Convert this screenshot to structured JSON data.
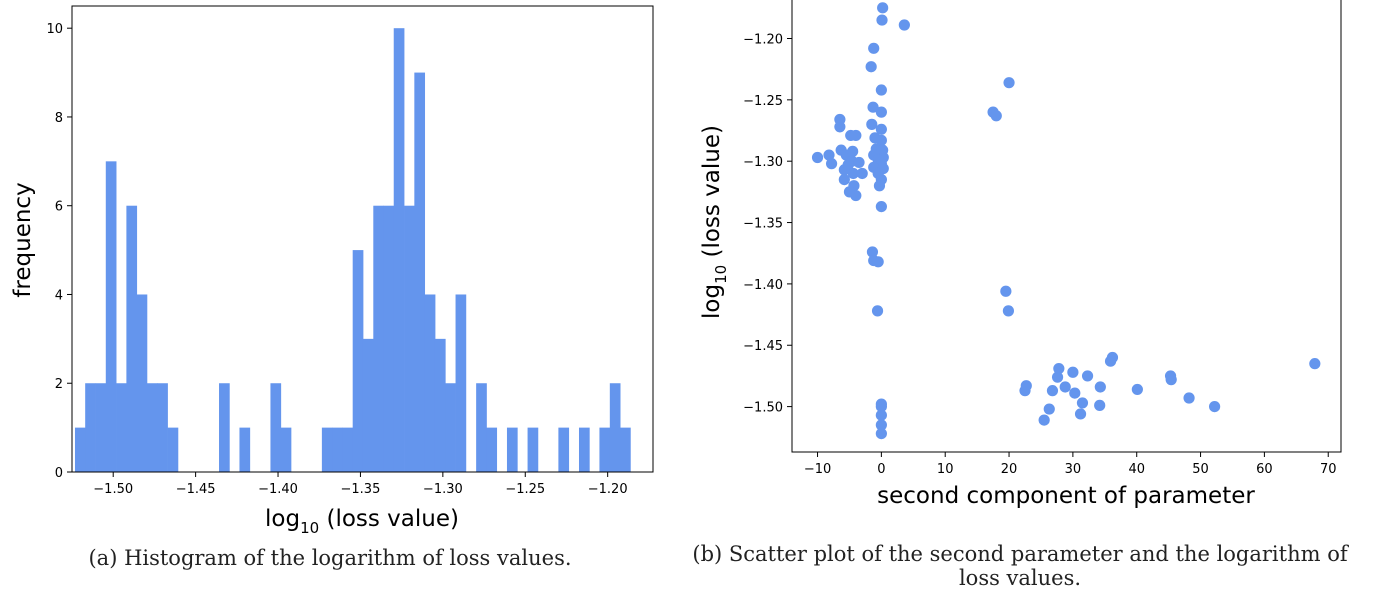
{
  "figures": [
    {
      "caption": "(a) Histogram of the logarithm of loss values.",
      "chart_data": {
        "type": "bar",
        "title": "",
        "xlabel_main": "log",
        "xlabel_sub": "10",
        "xlabel_rest": " (loss value)",
        "ylabel": "frequency",
        "xlim": [
          -1.525,
          -1.1725
        ],
        "ylim": [
          0,
          10.5
        ],
        "color": "#6495ed",
        "bin_width": 0.00624,
        "bin_left_edges": [
          -1.5232,
          -1.517,
          -1.5107,
          -1.5045,
          -1.4982,
          -1.492,
          -1.4858,
          -1.4795,
          -1.4733,
          -1.467,
          -1.4608,
          -1.4546,
          -1.4483,
          -1.4421,
          -1.4358,
          -1.4296,
          -1.4234,
          -1.4171,
          -1.4109,
          -1.4046,
          -1.3984,
          -1.3922,
          -1.3859,
          -1.3797,
          -1.3734,
          -1.3672,
          -1.361,
          -1.3547,
          -1.3485,
          -1.3422,
          -1.336,
          -1.3298,
          -1.3235,
          -1.3173,
          -1.311,
          -1.3048,
          -1.2986,
          -1.2923,
          -1.2861,
          -1.2798,
          -1.2736,
          -1.2674,
          -1.2611,
          -1.2549,
          -1.2486,
          -1.2424,
          -1.2362,
          -1.2299,
          -1.2237,
          -1.2174,
          -1.2112,
          -1.205,
          -1.1987,
          -1.1925,
          -1.1862,
          -1.18
        ],
        "counts": [
          1,
          2,
          2,
          7,
          2,
          6,
          4,
          2,
          2,
          1,
          0,
          0,
          0,
          0,
          2,
          0,
          1,
          0,
          0,
          2,
          1,
          0,
          0,
          0,
          1,
          1,
          1,
          5,
          3,
          6,
          6,
          10,
          6,
          9,
          4,
          3,
          2,
          4,
          0,
          2,
          1,
          0,
          1,
          0,
          1,
          0,
          0,
          1,
          0,
          1,
          0,
          1,
          2,
          1,
          0,
          0
        ],
        "xticks": [
          -1.5,
          -1.45,
          -1.4,
          -1.35,
          -1.3,
          -1.25,
          -1.2
        ],
        "xtick_labels": [
          "−1.50",
          "−1.45",
          "−1.40",
          "−1.35",
          "−1.30",
          "−1.25",
          "−1.20"
        ],
        "yticks": [
          0,
          2,
          4,
          6,
          8,
          10
        ],
        "ytick_labels": [
          "0",
          "2",
          "4",
          "6",
          "8",
          "10"
        ]
      }
    },
    {
      "caption": "(b) Scatter plot of the second parameter and the logarithm of loss values.",
      "chart_data": {
        "type": "scatter",
        "title": "",
        "xlabel": "second component of parameter",
        "ylabel_main": "log",
        "ylabel_sub": "10",
        "ylabel_rest": " (loss value)",
        "xlim": [
          -14,
          72
        ],
        "ylim": [
          -1.537,
          -1.167
        ],
        "color": "#6495ed",
        "xticks": [
          -10,
          0,
          10,
          20,
          30,
          40,
          50,
          60,
          70
        ],
        "xtick_labels": [
          "−10",
          "0",
          "10",
          "20",
          "30",
          "40",
          "50",
          "60",
          "70"
        ],
        "yticks": [
          -1.2,
          -1.25,
          -1.3,
          -1.35,
          -1.4,
          -1.45,
          -1.5
        ],
        "ytick_labels": [
          "−1.20",
          "−1.25",
          "−1.30",
          "−1.35",
          "−1.40",
          "−1.45",
          "−1.50"
        ],
        "points": [
          [
            -10,
            -1.297
          ],
          [
            -8.2,
            -1.295
          ],
          [
            -7.8,
            -1.302
          ],
          [
            -6.5,
            -1.272
          ],
          [
            -6.5,
            -1.266
          ],
          [
            -6.3,
            -1.291
          ],
          [
            -5.8,
            -1.307
          ],
          [
            -5.5,
            -1.295
          ],
          [
            -5.2,
            -1.303
          ],
          [
            -5.8,
            -1.315
          ],
          [
            -4.8,
            -1.279
          ],
          [
            -4.5,
            -1.292
          ],
          [
            -4.6,
            -1.3
          ],
          [
            -4.4,
            -1.31
          ],
          [
            -4.0,
            -1.279
          ],
          [
            -4.3,
            -1.32
          ],
          [
            -4.0,
            -1.328
          ],
          [
            -5.0,
            -1.325
          ],
          [
            -3.5,
            -1.301
          ],
          [
            -3.0,
            -1.31
          ],
          [
            0.2,
            -1.175
          ],
          [
            0.1,
            -1.185
          ],
          [
            3.6,
            -1.189
          ],
          [
            -1.2,
            -1.208
          ],
          [
            -1.6,
            -1.223
          ],
          [
            0,
            -1.242
          ],
          [
            -1.3,
            -1.256
          ],
          [
            0,
            -1.26
          ],
          [
            -1.5,
            -1.27
          ],
          [
            0,
            -1.274
          ],
          [
            -1.0,
            -1.281
          ],
          [
            0,
            -1.283
          ],
          [
            -0.8,
            -1.29
          ],
          [
            0.2,
            -1.291
          ],
          [
            -1.2,
            -1.295
          ],
          [
            0.3,
            -1.297
          ],
          [
            -0.5,
            -1.299
          ],
          [
            0,
            -1.302
          ],
          [
            -1.2,
            -1.305
          ],
          [
            0.3,
            -1.306
          ],
          [
            -0.5,
            -1.31
          ],
          [
            0,
            -1.315
          ],
          [
            -0.3,
            -1.32
          ],
          [
            0,
            -1.337
          ],
          [
            -1.4,
            -1.374
          ],
          [
            -1.2,
            -1.381
          ],
          [
            -0.5,
            -1.382
          ],
          [
            -0.6,
            -1.422
          ],
          [
            0,
            -1.498
          ],
          [
            0,
            -1.5
          ],
          [
            0,
            -1.507
          ],
          [
            0,
            -1.515
          ],
          [
            0,
            -1.522
          ],
          [
            17.5,
            -1.26
          ],
          [
            18.0,
            -1.263
          ],
          [
            20.0,
            -1.236
          ],
          [
            19.5,
            -1.406
          ],
          [
            19.9,
            -1.422
          ],
          [
            22.5,
            -1.487
          ],
          [
            22.7,
            -1.483
          ],
          [
            25.5,
            -1.511
          ],
          [
            26.3,
            -1.502
          ],
          [
            26.8,
            -1.487
          ],
          [
            27.6,
            -1.476
          ],
          [
            27.8,
            -1.469
          ],
          [
            28.8,
            -1.484
          ],
          [
            30.0,
            -1.472
          ],
          [
            30.3,
            -1.489
          ],
          [
            31.2,
            -1.506
          ],
          [
            31.5,
            -1.497
          ],
          [
            32.3,
            -1.475
          ],
          [
            34.2,
            -1.499
          ],
          [
            34.3,
            -1.484
          ],
          [
            35.9,
            -1.463
          ],
          [
            36.2,
            -1.46
          ],
          [
            40.1,
            -1.486
          ],
          [
            45.3,
            -1.475
          ],
          [
            45.4,
            -1.478
          ],
          [
            48.2,
            -1.493
          ],
          [
            52.2,
            -1.5
          ],
          [
            67.9,
            -1.465
          ]
        ]
      }
    }
  ]
}
